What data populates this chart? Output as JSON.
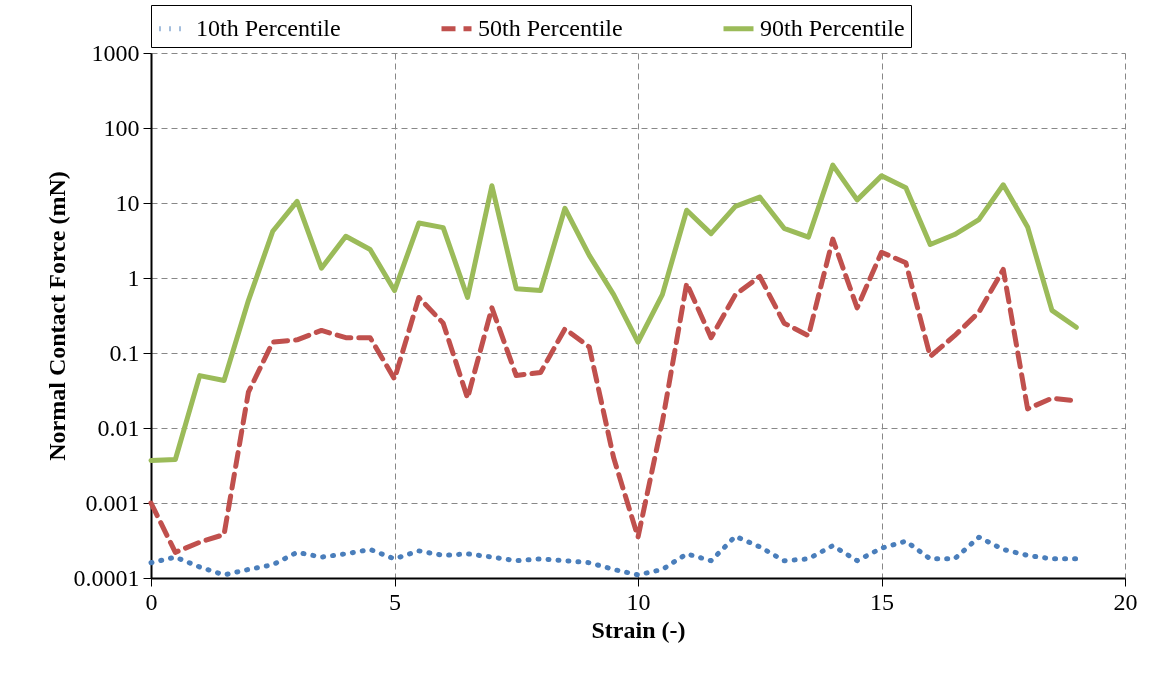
{
  "chart_data": {
    "type": "line",
    "xlabel": "Strain (-)",
    "ylabel": "Normal Contact Force (mN)",
    "x": [
      0,
      0.5,
      1,
      1.5,
      2,
      2.5,
      3,
      3.5,
      4,
      4.5,
      5,
      5.5,
      6,
      6.5,
      7,
      7.5,
      8,
      8.5,
      9,
      9.5,
      10,
      10.5,
      11,
      11.5,
      12,
      12.5,
      13,
      13.5,
      14,
      14.5,
      15,
      15.5,
      16,
      16.5,
      17,
      17.5,
      18,
      18.5,
      19
    ],
    "series": [
      {
        "name": "10th Percentile",
        "color": "#4a7ebb",
        "line_style": "dotted",
        "values": [
          0.00016,
          0.00019,
          0.00014,
          0.00011,
          0.00013,
          0.00015,
          0.00022,
          0.00019,
          0.00021,
          0.00024,
          0.00018,
          0.00023,
          0.0002,
          0.00021,
          0.00019,
          0.00017,
          0.00018,
          0.00017,
          0.00016,
          0.00013,
          0.00011,
          0.00013,
          0.00021,
          0.00017,
          0.00036,
          0.00026,
          0.00017,
          0.00018,
          0.00027,
          0.00017,
          0.00025,
          0.00031,
          0.00018,
          0.00018,
          0.00035,
          0.00024,
          0.0002,
          0.00018,
          0.00018
        ]
      },
      {
        "name": "50th Percentile",
        "color": "#c0504d",
        "line_style": "dashed",
        "values": [
          0.001,
          0.00022,
          0.0003,
          0.00038,
          0.03,
          0.14,
          0.15,
          0.2,
          0.16,
          0.16,
          0.045,
          0.55,
          0.25,
          0.025,
          0.4,
          0.05,
          0.055,
          0.21,
          0.12,
          0.004,
          0.00035,
          0.012,
          0.85,
          0.16,
          0.6,
          1.05,
          0.25,
          0.17,
          3.3,
          0.4,
          2.2,
          1.6,
          0.09,
          0.17,
          0.35,
          1.3,
          0.018,
          0.025,
          0.023
        ]
      },
      {
        "name": "90th Percentile",
        "color": "#9bbb59",
        "line_style": "solid",
        "values": [
          0.0037,
          0.0038,
          0.05,
          0.043,
          0.5,
          4.2,
          10.5,
          1.35,
          3.6,
          2.4,
          0.68,
          5.4,
          4.7,
          0.55,
          17,
          0.72,
          0.68,
          8.5,
          2,
          0.6,
          0.14,
          0.6,
          8,
          3.9,
          9,
          12,
          4.6,
          3.5,
          32,
          11,
          23,
          16,
          2.8,
          3.8,
          6,
          17.5,
          4.8,
          0.37,
          0.22
        ]
      }
    ],
    "xlim": [
      0,
      20
    ],
    "xticks": [
      0,
      5,
      10,
      15,
      20
    ],
    "ylim": [
      0.0001,
      1000
    ],
    "yticks": [
      0.0001,
      0.001,
      0.01,
      0.1,
      1,
      10,
      100,
      1000
    ],
    "log": "y",
    "grid": true,
    "legend": "top",
    "marker": "none"
  }
}
